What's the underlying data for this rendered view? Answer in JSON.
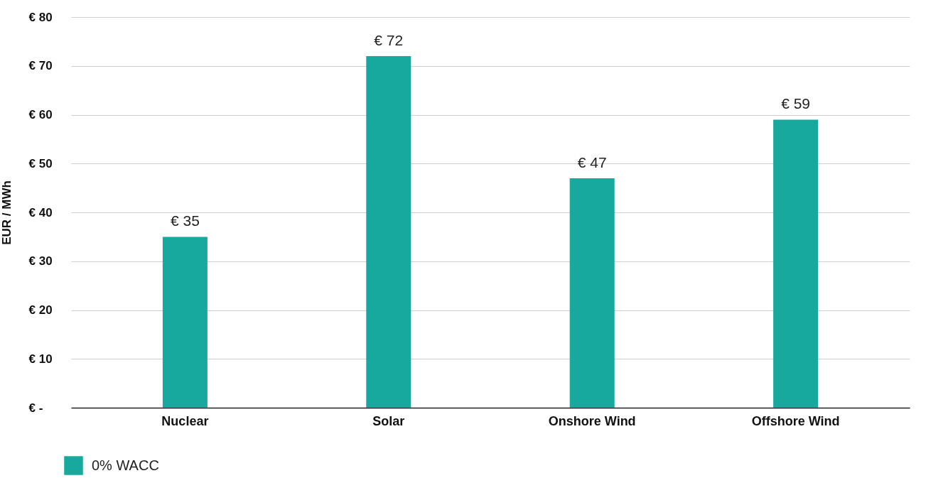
{
  "chart_data": {
    "type": "bar",
    "ylabel": "EUR / MWh",
    "categories": [
      "Nuclear",
      "Solar",
      "Onshore Wind",
      "Offshore Wind"
    ],
    "series": [
      {
        "name": "0% WACC",
        "color": "#17a89e",
        "values": [
          35,
          72,
          47,
          59
        ],
        "value_labels": [
          "€ 35",
          "€ 72",
          "€ 47",
          "€ 59"
        ]
      }
    ],
    "ylim": [
      0,
      80
    ],
    "yticks": [
      {
        "value": 0,
        "label": "€ -"
      },
      {
        "value": 10,
        "label": "€ 10"
      },
      {
        "value": 20,
        "label": "€ 20"
      },
      {
        "value": 30,
        "label": "€ 30"
      },
      {
        "value": 40,
        "label": "€ 40"
      },
      {
        "value": 50,
        "label": "€ 50"
      },
      {
        "value": 60,
        "label": "€ 60"
      },
      {
        "value": 70,
        "label": "€ 70"
      },
      {
        "value": 80,
        "label": "€ 80"
      }
    ],
    "grid": "y",
    "legend": "bottom left"
  }
}
